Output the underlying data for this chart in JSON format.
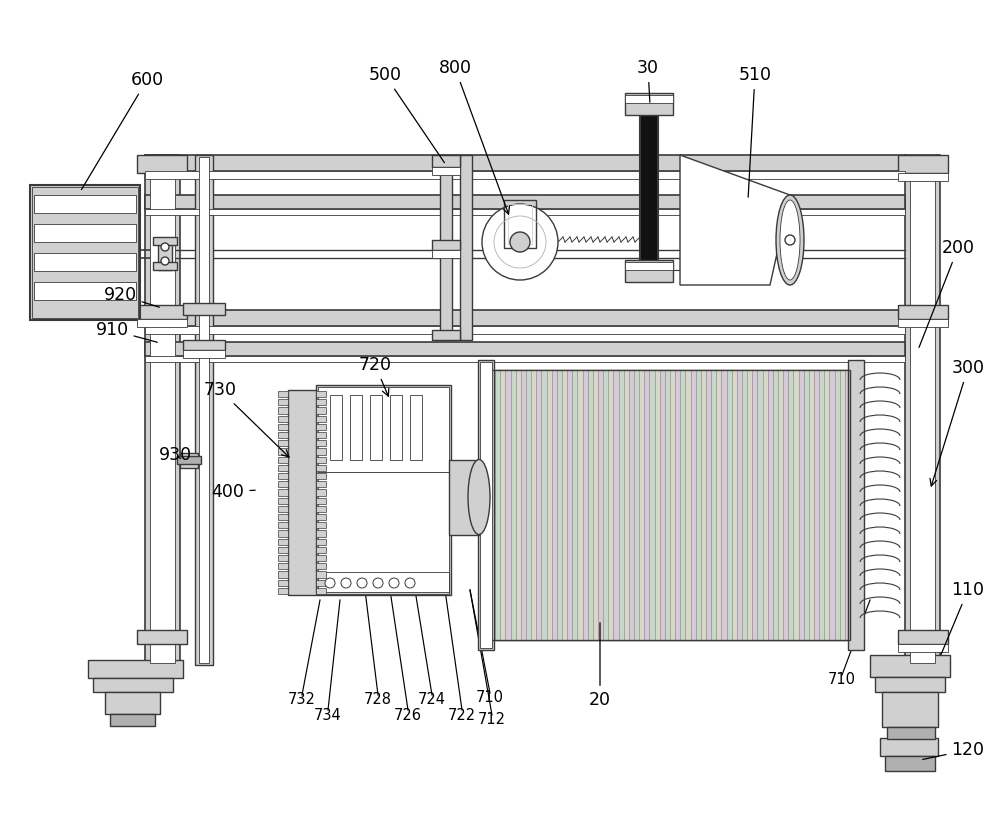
{
  "bg_color": "#ffffff",
  "lc": "#3a3a3a",
  "lg": "#d0d0d0",
  "mg": "#b0b0b0",
  "dg": "#707070",
  "black": "#1a1a1a",
  "coil_stripe1": "#d8c8d8",
  "coil_stripe2": "#c8d8c8",
  "coil_stripe3": "#d8d8c8",
  "coil_line": "#909090",
  "figsize": [
    10.0,
    8.27
  ],
  "dpi": 100,
  "lw_main": 1.0,
  "lw_thick": 1.5,
  "lw_thin": 0.6,
  "lw_frame": 1.2
}
